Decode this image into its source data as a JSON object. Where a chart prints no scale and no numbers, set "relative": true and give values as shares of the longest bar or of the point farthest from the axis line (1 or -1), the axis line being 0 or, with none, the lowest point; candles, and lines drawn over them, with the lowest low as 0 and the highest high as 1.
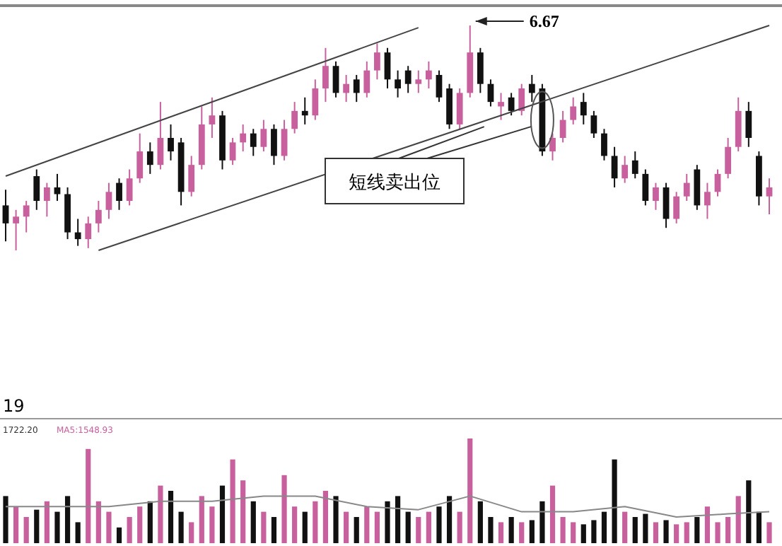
{
  "chart_data": [
    {
      "type": "candlestick",
      "relative": true,
      "categories": [
        null,
        null,
        null,
        null,
        null,
        null,
        null,
        null,
        null,
        null,
        null,
        null,
        null,
        null,
        null,
        null,
        null,
        null,
        null,
        null,
        null,
        null,
        null,
        null,
        null,
        null,
        null,
        null,
        null,
        null,
        null,
        null,
        null,
        null,
        null,
        null,
        null,
        null,
        null,
        null,
        null,
        null,
        null,
        null,
        null,
        null,
        null,
        null,
        null,
        null,
        null,
        null,
        null,
        null,
        null,
        null,
        null,
        null,
        null,
        null,
        null,
        null,
        null,
        null,
        null,
        null,
        null,
        null,
        null,
        null,
        null,
        null,
        null,
        null,
        null
      ],
      "ohlc": [
        [
          0.2,
          0.27,
          0.04,
          0.12
        ],
        [
          0.12,
          0.18,
          0.0,
          0.15
        ],
        [
          0.15,
          0.22,
          0.08,
          0.2
        ],
        [
          0.33,
          0.36,
          0.18,
          0.22
        ],
        [
          0.22,
          0.3,
          0.15,
          0.28
        ],
        [
          0.28,
          0.34,
          0.22,
          0.25
        ],
        [
          0.25,
          0.28,
          0.05,
          0.08
        ],
        [
          0.08,
          0.14,
          0.02,
          0.05
        ],
        [
          0.05,
          0.15,
          0.01,
          0.12
        ],
        [
          0.12,
          0.22,
          0.08,
          0.18
        ],
        [
          0.18,
          0.3,
          0.14,
          0.26
        ],
        [
          0.3,
          0.32,
          0.18,
          0.22
        ],
        [
          0.22,
          0.36,
          0.2,
          0.32
        ],
        [
          0.32,
          0.52,
          0.3,
          0.44
        ],
        [
          0.44,
          0.48,
          0.34,
          0.38
        ],
        [
          0.38,
          0.66,
          0.36,
          0.5
        ],
        [
          0.5,
          0.56,
          0.4,
          0.44
        ],
        [
          0.48,
          0.5,
          0.2,
          0.26
        ],
        [
          0.26,
          0.42,
          0.24,
          0.38
        ],
        [
          0.38,
          0.64,
          0.36,
          0.56
        ],
        [
          0.56,
          0.68,
          0.5,
          0.6
        ],
        [
          0.6,
          0.62,
          0.36,
          0.4
        ],
        [
          0.4,
          0.5,
          0.38,
          0.48
        ],
        [
          0.48,
          0.56,
          0.44,
          0.52
        ],
        [
          0.52,
          0.54,
          0.42,
          0.46
        ],
        [
          0.46,
          0.58,
          0.44,
          0.54
        ],
        [
          0.54,
          0.56,
          0.38,
          0.42
        ],
        [
          0.42,
          0.58,
          0.4,
          0.54
        ],
        [
          0.54,
          0.66,
          0.52,
          0.62
        ],
        [
          0.62,
          0.68,
          0.56,
          0.6
        ],
        [
          0.6,
          0.76,
          0.58,
          0.72
        ],
        [
          0.72,
          0.9,
          0.66,
          0.82
        ],
        [
          0.82,
          0.84,
          0.68,
          0.7
        ],
        [
          0.7,
          0.78,
          0.66,
          0.74
        ],
        [
          0.76,
          0.78,
          0.66,
          0.7
        ],
        [
          0.7,
          0.84,
          0.68,
          0.8
        ],
        [
          0.8,
          0.92,
          0.76,
          0.88
        ],
        [
          0.88,
          0.9,
          0.72,
          0.76
        ],
        [
          0.76,
          0.8,
          0.68,
          0.72
        ],
        [
          0.8,
          0.82,
          0.7,
          0.74
        ],
        [
          0.74,
          0.8,
          0.7,
          0.76
        ],
        [
          0.76,
          0.84,
          0.72,
          0.8
        ],
        [
          0.78,
          0.8,
          0.66,
          0.68
        ],
        [
          0.72,
          0.74,
          0.54,
          0.56
        ],
        [
          0.56,
          0.72,
          0.54,
          0.7
        ],
        [
          0.7,
          1.0,
          0.68,
          0.88
        ],
        [
          0.88,
          0.9,
          0.7,
          0.74
        ],
        [
          0.74,
          0.76,
          0.64,
          0.66
        ],
        [
          0.64,
          0.7,
          0.58,
          0.66
        ],
        [
          0.68,
          0.7,
          0.6,
          0.62
        ],
        [
          0.62,
          0.74,
          0.6,
          0.72
        ],
        [
          0.74,
          0.78,
          0.66,
          0.7
        ],
        [
          0.72,
          0.74,
          0.42,
          0.44
        ],
        [
          0.44,
          0.52,
          0.4,
          0.5
        ],
        [
          0.5,
          0.62,
          0.48,
          0.58
        ],
        [
          0.58,
          0.68,
          0.56,
          0.64
        ],
        [
          0.66,
          0.7,
          0.56,
          0.6
        ],
        [
          0.6,
          0.62,
          0.5,
          0.52
        ],
        [
          0.52,
          0.54,
          0.4,
          0.42
        ],
        [
          0.42,
          0.46,
          0.28,
          0.32
        ],
        [
          0.32,
          0.42,
          0.3,
          0.38
        ],
        [
          0.4,
          0.44,
          0.32,
          0.34
        ],
        [
          0.34,
          0.36,
          0.2,
          0.22
        ],
        [
          0.22,
          0.3,
          0.18,
          0.28
        ],
        [
          0.28,
          0.3,
          0.1,
          0.14
        ],
        [
          0.14,
          0.26,
          0.12,
          0.24
        ],
        [
          0.24,
          0.34,
          0.22,
          0.3
        ],
        [
          0.36,
          0.38,
          0.18,
          0.2
        ],
        [
          0.2,
          0.3,
          0.14,
          0.26
        ],
        [
          0.26,
          0.36,
          0.24,
          0.34
        ],
        [
          0.34,
          0.5,
          0.32,
          0.46
        ],
        [
          0.46,
          0.68,
          0.44,
          0.62
        ],
        [
          0.62,
          0.66,
          0.46,
          0.5
        ],
        [
          0.42,
          0.44,
          0.2,
          0.24
        ],
        [
          0.24,
          0.32,
          0.16,
          0.28
        ]
      ],
      "colors": [
        "#111111",
        "#c8609e",
        "#c8609e",
        "#111111",
        "#c8609e",
        "#111111",
        "#111111",
        "#111111",
        "#c8609e",
        "#c8609e",
        "#c8609e",
        "#111111",
        "#c8609e",
        "#c8609e",
        "#111111",
        "#c8609e",
        "#111111",
        "#111111",
        "#c8609e",
        "#c8609e",
        "#c8609e",
        "#111111",
        "#c8609e",
        "#c8609e",
        "#111111",
        "#c8609e",
        "#111111",
        "#c8609e",
        "#c8609e",
        "#111111",
        "#c8609e",
        "#c8609e",
        "#111111",
        "#c8609e",
        "#111111",
        "#c8609e",
        "#c8609e",
        "#111111",
        "#111111",
        "#111111",
        "#c8609e",
        "#c8609e",
        "#111111",
        "#111111",
        "#c8609e",
        "#c8609e",
        "#111111",
        "#111111",
        "#c8609e",
        "#111111",
        "#c8609e",
        "#111111",
        "#111111",
        "#c8609e",
        "#c8609e",
        "#c8609e",
        "#111111",
        "#111111",
        "#111111",
        "#111111",
        "#c8609e",
        "#111111",
        "#111111",
        "#c8609e",
        "#111111",
        "#c8609e",
        "#c8609e",
        "#111111",
        "#c8609e",
        "#c8609e",
        "#c8609e",
        "#c8609e",
        "#111111",
        "#111111",
        "#c8609e"
      ],
      "series": [
        {
          "type": "line",
          "color": "#444444",
          "values": [
            0.33,
            null,
            null,
            null,
            null,
            null,
            null,
            null,
            null,
            null,
            null,
            null,
            null,
            null,
            null,
            null,
            null,
            null,
            null,
            null,
            null,
            null,
            null,
            null,
            null,
            null,
            null,
            null,
            null,
            null,
            null,
            null,
            null,
            null,
            null,
            null,
            null,
            null,
            null,
            null,
            0.99,
            null,
            null,
            null,
            null,
            null,
            null,
            null,
            null,
            null,
            null,
            null,
            null,
            null,
            null,
            null,
            null,
            null,
            null,
            null,
            null,
            null,
            null,
            null,
            null,
            null,
            null,
            null,
            null,
            null,
            null,
            null,
            null,
            null,
            null
          ]
        },
        {
          "type": "line",
          "color": "#444444",
          "values": [
            null,
            null,
            null,
            null,
            null,
            null,
            null,
            null,
            null,
            0.0,
            null,
            null,
            null,
            null,
            null,
            null,
            null,
            null,
            null,
            null,
            null,
            null,
            null,
            null,
            null,
            null,
            null,
            null,
            null,
            null,
            null,
            null,
            null,
            null,
            null,
            null,
            null,
            null,
            null,
            null,
            null,
            null,
            null,
            null,
            null,
            null,
            null,
            null,
            null,
            null,
            null,
            null,
            null,
            null,
            null,
            null,
            null,
            null,
            null,
            null,
            null,
            null,
            null,
            null,
            null,
            null,
            null,
            null,
            null,
            null,
            null,
            null,
            null,
            null,
            1.0
          ]
        }
      ],
      "annotations": [
        "6.67",
        "短线卖出位"
      ]
    },
    {
      "type": "bar",
      "relative": true,
      "categories": [
        null,
        null,
        null,
        null,
        null,
        null,
        null,
        null,
        null,
        null,
        null,
        null,
        null,
        null,
        null,
        null,
        null,
        null,
        null,
        null,
        null,
        null,
        null,
        null,
        null,
        null,
        null,
        null,
        null,
        null,
        null,
        null,
        null,
        null,
        null,
        null,
        null,
        null,
        null,
        null,
        null,
        null,
        null,
        null,
        null,
        null,
        null,
        null,
        null,
        null,
        null,
        null,
        null,
        null,
        null,
        null,
        null,
        null,
        null,
        null,
        null,
        null,
        null,
        null,
        null,
        null,
        null,
        null,
        null,
        null,
        null,
        null,
        null,
        null,
        null
      ],
      "values": [
        0.45,
        0.35,
        0.25,
        0.32,
        0.4,
        0.3,
        0.45,
        0.2,
        0.9,
        0.4,
        0.3,
        0.15,
        0.25,
        0.35,
        0.4,
        0.55,
        0.5,
        0.3,
        0.2,
        0.45,
        0.35,
        0.55,
        0.8,
        0.6,
        0.4,
        0.3,
        0.25,
        0.65,
        0.35,
        0.3,
        0.4,
        0.5,
        0.45,
        0.3,
        0.25,
        0.35,
        0.3,
        0.4,
        0.45,
        0.3,
        0.25,
        0.3,
        0.35,
        0.45,
        0.3,
        1.0,
        0.4,
        0.25,
        0.2,
        0.25,
        0.2,
        0.22,
        0.4,
        0.55,
        0.25,
        0.2,
        0.18,
        0.22,
        0.3,
        0.8,
        0.3,
        0.25,
        0.28,
        0.2,
        0.22,
        0.18,
        0.2,
        0.25,
        0.35,
        0.2,
        0.25,
        0.45,
        0.6,
        0.3,
        0.2
      ],
      "colors": [
        "#111111",
        "#c8609e",
        "#c8609e",
        "#111111",
        "#c8609e",
        "#111111",
        "#111111",
        "#111111",
        "#c8609e",
        "#c8609e",
        "#c8609e",
        "#111111",
        "#c8609e",
        "#c8609e",
        "#111111",
        "#c8609e",
        "#111111",
        "#111111",
        "#c8609e",
        "#c8609e",
        "#c8609e",
        "#111111",
        "#c8609e",
        "#c8609e",
        "#111111",
        "#c8609e",
        "#111111",
        "#c8609e",
        "#c8609e",
        "#111111",
        "#c8609e",
        "#c8609e",
        "#111111",
        "#c8609e",
        "#111111",
        "#c8609e",
        "#c8609e",
        "#111111",
        "#111111",
        "#111111",
        "#c8609e",
        "#c8609e",
        "#111111",
        "#111111",
        "#c8609e",
        "#c8609e",
        "#111111",
        "#111111",
        "#c8609e",
        "#111111",
        "#c8609e",
        "#111111",
        "#111111",
        "#c8609e",
        "#c8609e",
        "#c8609e",
        "#111111",
        "#111111",
        "#111111",
        "#111111",
        "#c8609e",
        "#111111",
        "#111111",
        "#c8609e",
        "#111111",
        "#c8609e",
        "#c8609e",
        "#111111",
        "#c8609e",
        "#c8609e",
        "#c8609e",
        "#c8609e",
        "#111111",
        "#111111",
        "#c8609e"
      ],
      "series": [
        {
          "type": "line",
          "color": "#888888",
          "values": [
            0.35,
            null,
            null,
            null,
            null,
            0.35,
            null,
            null,
            null,
            null,
            0.35,
            null,
            null,
            null,
            null,
            0.4,
            null,
            null,
            null,
            null,
            0.4,
            null,
            null,
            null,
            null,
            0.45,
            null,
            null,
            null,
            null,
            0.45,
            null,
            null,
            null,
            null,
            0.35,
            null,
            null,
            null,
            null,
            0.32,
            null,
            null,
            null,
            null,
            0.45,
            null,
            null,
            null,
            null,
            0.3,
            null,
            null,
            null,
            null,
            0.3,
            null,
            null,
            null,
            null,
            0.35,
            null,
            null,
            null,
            null,
            0.25,
            null,
            null,
            null,
            null,
            0.28,
            null,
            null,
            null,
            0.3
          ]
        }
      ],
      "annotations": [
        "19",
        "1722.20",
        "MA5:1548.93"
      ]
    }
  ]
}
